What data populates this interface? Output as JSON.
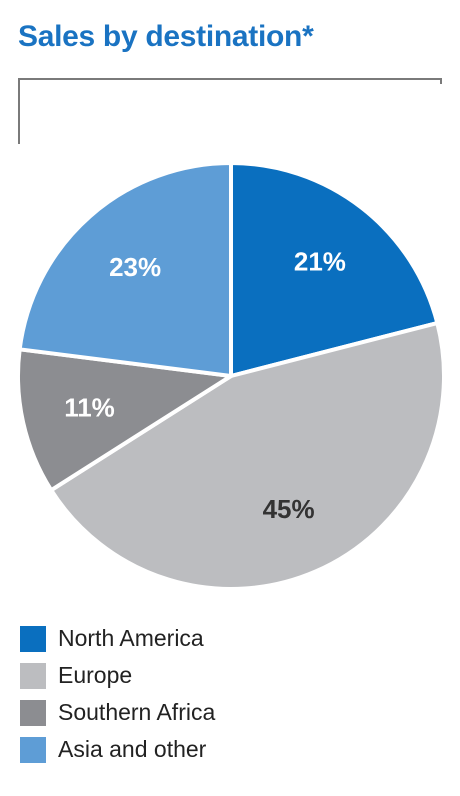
{
  "chart_data": {
    "type": "pie",
    "title": "Sales by destination*",
    "start_angle_deg": 0,
    "direction": "clockwise",
    "slices": [
      {
        "name": "North America",
        "value": 21,
        "label": "21%",
        "color": "#0a6fbf",
        "label_color": "#ffffff"
      },
      {
        "name": "Europe",
        "value": 45,
        "label": "45%",
        "color": "#bcbdc0",
        "label_color": "#333333"
      },
      {
        "name": "Southern Africa",
        "value": 11,
        "label": "11%",
        "color": "#8c8d91",
        "label_color": "#ffffff"
      },
      {
        "name": "Asia and other",
        "value": 23,
        "label": "23%",
        "color": "#5e9dd6",
        "label_color": "#ffffff"
      }
    ],
    "legend_position": "bottom-left"
  }
}
